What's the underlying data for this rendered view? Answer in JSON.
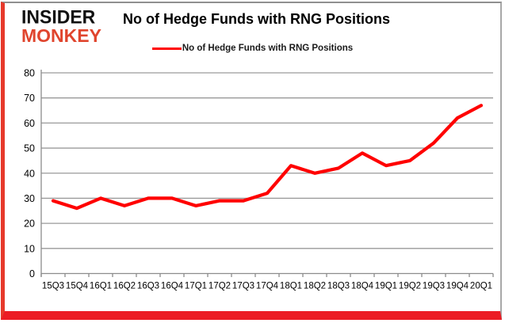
{
  "branding": {
    "line1": "INSIDER",
    "line2": "MONKEY",
    "accent_color": "#e0452e"
  },
  "header": {
    "title": "No of Hedge Funds with RNG Positions"
  },
  "legend": {
    "label": "No of Hedge Funds with RNG Positions",
    "color": "#ff0000",
    "position": "top-center"
  },
  "frame": {
    "red_border_color": "#ec1c24",
    "gray_border_color": "#8f8f8f"
  },
  "chart_data": {
    "type": "line",
    "title": "No of Hedge Funds with RNG Positions",
    "categories": [
      "15Q3",
      "15Q4",
      "16Q1",
      "16Q2",
      "16Q3",
      "16Q4",
      "17Q1",
      "17Q2",
      "17Q3",
      "17Q4",
      "18Q1",
      "18Q2",
      "18Q3",
      "18Q4",
      "19Q1",
      "19Q2",
      "19Q3",
      "19Q4",
      "20Q1"
    ],
    "series": [
      {
        "name": "No of Hedge Funds with RNG Positions",
        "color": "#ff0000",
        "values": [
          29,
          26,
          30,
          27,
          30,
          30,
          27,
          29,
          29,
          32,
          43,
          40,
          42,
          48,
          43,
          45,
          52,
          62,
          67
        ]
      }
    ],
    "xlabel": "",
    "ylabel": "",
    "ylim": [
      0,
      80
    ],
    "yticks": [
      0,
      10,
      20,
      30,
      40,
      50,
      60,
      70,
      80
    ],
    "grid": true,
    "gridline_color": "#9a9a9a",
    "axis_color": "#8c8c8c",
    "tick_label_color": "#000000",
    "legend_position": "top"
  }
}
